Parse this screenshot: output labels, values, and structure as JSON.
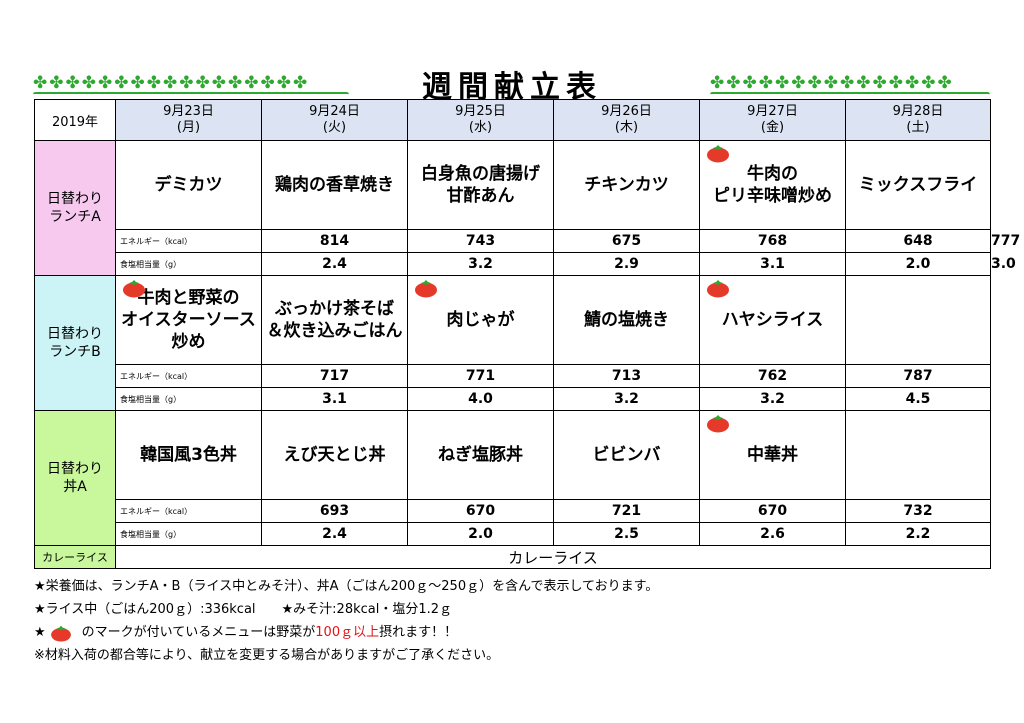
{
  "title": "週間献立表",
  "year": "2019年",
  "days": [
    {
      "date": "9月23日",
      "dow": "(月)"
    },
    {
      "date": "9月24日",
      "dow": "(火)"
    },
    {
      "date": "9月25日",
      "dow": "(水)"
    },
    {
      "date": "9月26日",
      "dow": "(木)"
    },
    {
      "date": "9月27日",
      "dow": "(金)"
    },
    {
      "date": "9月28日",
      "dow": "(土)"
    }
  ],
  "labels": {
    "energy": "エネルギー（kcal）",
    "salt": "食塩相当量（g）"
  },
  "categories": [
    {
      "name_line1": "日替わり",
      "name_line2": "ランチA",
      "meals": [
        {
          "line1": "デミカツ",
          "line2": "",
          "energy": "814",
          "salt": "2.4",
          "tomato": false
        },
        {
          "line1": "鶏肉の香草焼き",
          "line2": "",
          "energy": "743",
          "salt": "3.2",
          "tomato": false
        },
        {
          "line1": "白身魚の唐揚げ",
          "line2": "甘酢あん",
          "energy": "675",
          "salt": "2.9",
          "tomato": false
        },
        {
          "line1": "チキンカツ",
          "line2": "",
          "energy": "768",
          "salt": "3.1",
          "tomato": false
        },
        {
          "line1": "牛肉の",
          "line2": "ピリ辛味噌炒め",
          "energy": "648",
          "salt": "2.0",
          "tomato": true
        },
        {
          "line1": "ミックスフライ",
          "line2": "",
          "energy": "777",
          "salt": "3.0",
          "tomato": false
        }
      ]
    },
    {
      "name_line1": "日替わり",
      "name_line2": "ランチB",
      "meals": [
        {
          "line1": "牛肉と野菜の",
          "line2": "オイスターソース炒め",
          "energy": "717",
          "salt": "3.1",
          "tomato": true
        },
        {
          "line1": "ぶっかけ茶そば",
          "line2": "＆炊き込みごはん",
          "energy": "771",
          "salt": "4.0",
          "tomato": false
        },
        {
          "line1": "肉じゃが",
          "line2": "",
          "energy": "713",
          "salt": "3.2",
          "tomato": true
        },
        {
          "line1": "鯖の塩焼き",
          "line2": "",
          "energy": "762",
          "salt": "3.2",
          "tomato": false
        },
        {
          "line1": "ハヤシライス",
          "line2": "",
          "energy": "787",
          "salt": "4.5",
          "tomato": true
        },
        {
          "line1": "",
          "line2": "",
          "energy": "",
          "salt": "",
          "tomato": false
        }
      ]
    },
    {
      "name_line1": "日替わり",
      "name_line2": "丼A",
      "meals": [
        {
          "line1": "韓国風3色丼",
          "line2": "",
          "energy": "693",
          "salt": "2.4",
          "tomato": false
        },
        {
          "line1": "えび天とじ丼",
          "line2": "",
          "energy": "670",
          "salt": "2.0",
          "tomato": false
        },
        {
          "line1": "ねぎ塩豚丼",
          "line2": "",
          "energy": "721",
          "salt": "2.5",
          "tomato": false
        },
        {
          "line1": "ビビンバ",
          "line2": "",
          "energy": "670",
          "salt": "2.6",
          "tomato": false
        },
        {
          "line1": "中華丼",
          "line2": "",
          "energy": "732",
          "salt": "2.2",
          "tomato": true
        },
        {
          "line1": "",
          "line2": "",
          "energy": "",
          "salt": "",
          "tomato": false
        }
      ]
    }
  ],
  "curry": {
    "label": "カレーライス",
    "value": "カレーライス"
  },
  "notes": {
    "n1": "★栄養価は、ランチA・B（ライス中とみそ汁）、丼A（ごはん200ｇ～250ｇ）を含んで表示しております。",
    "n2": "★ライス中（ごはん200ｇ）:336kcal　　★みそ汁:28kcal・塩分1.2ｇ",
    "n3_star": "★",
    "n3_pre": "のマークが付いているメニューは野菜が",
    "n3_red": "100ｇ以上",
    "n3_post": "摂れます！！",
    "n4": "※材料入荷の都合等により、献立を変更する場合がありますがご了承ください。"
  },
  "colors": {
    "date_header": "#dce3f2",
    "lunch_a": "#f7c9ef",
    "lunch_b": "#ccf4f7",
    "don_a": "#c9f79c",
    "clover": "#2ea82e",
    "highlight": "#e21212",
    "tomato": "#e53a2a"
  },
  "icons": {
    "decoration": "clover-icon",
    "vegetable_mark": "tomato-icon"
  }
}
